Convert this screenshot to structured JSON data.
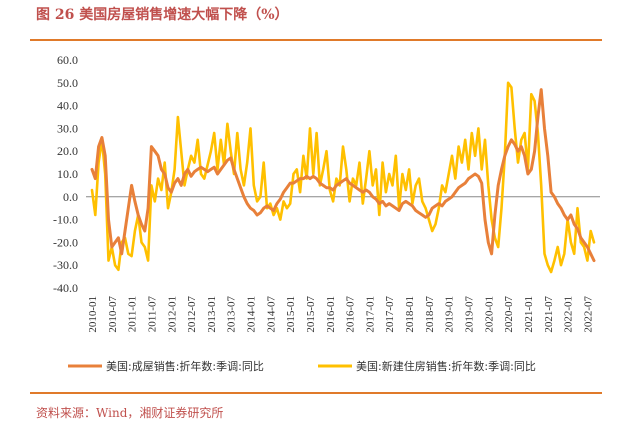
{
  "header": {
    "title": "图 26 美国房屋销售增速大幅下降（%）"
  },
  "footer": {
    "source": "资料来源：Wind，湘财证券研究所"
  },
  "colors": {
    "series1": "#e8803a",
    "series2": "#ffc000",
    "rule": "#e07a2a",
    "title": "#c0504d"
  },
  "chart_data": {
    "type": "line",
    "title": "",
    "xlabel": "",
    "ylabel": "",
    "ylim": [
      -40,
      60
    ],
    "yticks": [
      "60.0",
      "50.0",
      "40.0",
      "30.0",
      "20.0",
      "10.0",
      "0.0",
      "-10.0",
      "-20.0",
      "-30.0",
      "-40.0"
    ],
    "xticks": [
      "2010-01",
      "2010-07",
      "2011-01",
      "2011-07",
      "2012-01",
      "2012-07",
      "2013-01",
      "2013-07",
      "2014-01",
      "2014-07",
      "2015-01",
      "2015-07",
      "2016-01",
      "2016-07",
      "2017-01",
      "2017-07",
      "2018-01",
      "2018-07",
      "2019-01",
      "2019-07",
      "2020-01",
      "2020-07",
      "2021-01",
      "2021-07",
      "2022-01",
      "2022-07"
    ],
    "x_start": "2010-01",
    "legend_position": "bottom",
    "grid": false,
    "series": [
      {
        "name": "美国:成屋销售:折年数:季调:同比",
        "values": [
          12,
          8,
          22,
          26,
          18,
          -10,
          -22,
          -20,
          -18,
          -25,
          -15,
          -5,
          5,
          -2,
          -8,
          -12,
          -15,
          -5,
          22,
          20,
          18,
          12,
          10,
          4,
          2,
          6,
          8,
          5,
          10,
          12,
          9,
          11,
          12,
          13,
          12,
          11,
          12,
          13,
          10,
          12,
          14,
          16,
          17,
          12,
          8,
          4,
          0,
          -3,
          -5,
          -6,
          -8,
          -7,
          -5,
          -4,
          -5,
          -6,
          -3,
          -1,
          2,
          4,
          6,
          6,
          7,
          8,
          8,
          9,
          8,
          9,
          8,
          6,
          5,
          4,
          4,
          3,
          5,
          6,
          7,
          8,
          6,
          5,
          4,
          3,
          2,
          3,
          2,
          0,
          -1,
          -3,
          -2,
          -4,
          -3,
          -4,
          -5,
          -6,
          -3,
          -2,
          -3,
          -4,
          -6,
          -7,
          -8,
          -9,
          -8,
          -5,
          -4,
          -3,
          -4,
          -2,
          -1,
          0,
          2,
          4,
          5,
          6,
          8,
          9,
          10,
          9,
          6,
          -10,
          -20,
          -25,
          -8,
          5,
          12,
          18,
          22,
          25,
          23,
          20,
          22,
          18,
          10,
          12,
          20,
          35,
          47,
          30,
          18,
          2,
          0,
          -3,
          -5,
          -8,
          -10,
          -8,
          -12,
          -14,
          -18,
          -20,
          -22,
          -25,
          -28
        ]
      },
      {
        "name": "美国:新建住房销售:折年数:季调:同比",
        "values": [
          3,
          -8,
          15,
          25,
          10,
          -28,
          -22,
          -30,
          -32,
          -20,
          -18,
          -25,
          -26,
          -15,
          -8,
          -20,
          -22,
          -28,
          5,
          -2,
          8,
          3,
          15,
          -5,
          2,
          12,
          35,
          20,
          5,
          12,
          18,
          15,
          25,
          10,
          8,
          14,
          20,
          28,
          12,
          25,
          14,
          32,
          20,
          10,
          28,
          12,
          5,
          15,
          30,
          5,
          -2,
          0,
          15,
          -5,
          -3,
          -8,
          -5,
          -10,
          -2,
          -5,
          -3,
          10,
          12,
          2,
          18,
          8,
          30,
          10,
          28,
          5,
          12,
          20,
          3,
          -2,
          8,
          5,
          22,
          12,
          -2,
          8,
          5,
          15,
          -3,
          8,
          20,
          5,
          12,
          -8,
          15,
          2,
          10,
          5,
          18,
          -5,
          10,
          3,
          12,
          -3,
          5,
          8,
          -2,
          -5,
          -10,
          -15,
          -12,
          -5,
          5,
          2,
          10,
          18,
          8,
          22,
          15,
          25,
          12,
          28,
          18,
          30,
          12,
          25,
          5,
          -10,
          -18,
          -22,
          -5,
          18,
          50,
          48,
          30,
          15,
          25,
          28,
          12,
          45,
          42,
          28,
          5,
          -25,
          -30,
          -33,
          -28,
          -22,
          -30,
          -25,
          -10,
          -20,
          -25,
          -5,
          -20,
          -22,
          -28,
          -15,
          -20
        ]
      }
    ]
  }
}
